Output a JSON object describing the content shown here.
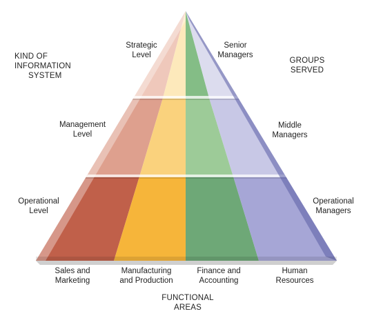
{
  "headers": {
    "kind_of_system": [
      "KIND OF",
      "INFORMATION",
      "SYSTEM"
    ],
    "groups_served": [
      "GROUPS",
      "SERVED"
    ],
    "functional_areas": [
      "FUNCTIONAL",
      "AREAS"
    ]
  },
  "levels": [
    {
      "system": [
        "Strategic",
        "Level"
      ],
      "group": [
        "Senior",
        "Managers"
      ]
    },
    {
      "system": [
        "Management",
        "Level"
      ],
      "group": [
        "Middle",
        "Managers"
      ]
    },
    {
      "system": [
        "Operational",
        "Level"
      ],
      "group": [
        "Operational",
        "Managers"
      ]
    }
  ],
  "functional_areas": [
    {
      "label": [
        "Sales and",
        "Marketing"
      ],
      "color": "#c0604a"
    },
    {
      "label": [
        "Manufacturing",
        "and Production"
      ],
      "color": "#f6b53a"
    },
    {
      "label": [
        "Finance and",
        "Accounting"
      ],
      "color": "#6ea877"
    },
    {
      "label": [
        "Human",
        "Resources"
      ],
      "color": "#a6a6d6"
    }
  ]
}
